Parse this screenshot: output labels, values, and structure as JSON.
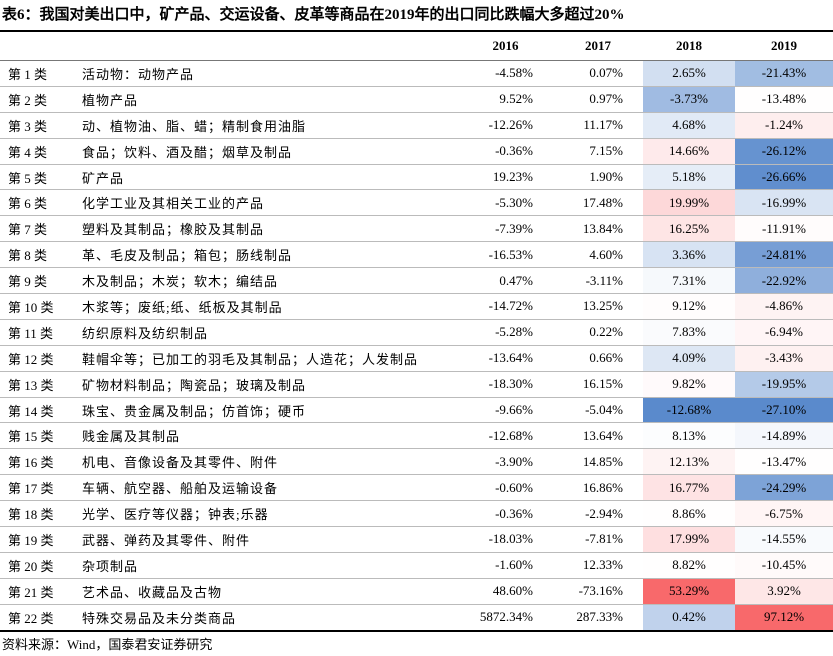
{
  "title": "表6：我国对美出口中，矿产品、交运设备、皮革等商品在2019年的出口同比跌幅大多超过20%",
  "table": {
    "header": [
      "2016",
      "2017",
      "2018",
      "2019"
    ],
    "rows": [
      [
        "第 1 类",
        "活动物：动物产品",
        "-4.58%",
        "0.07%",
        "2.65%",
        "-21.43%"
      ],
      [
        "第 2 类",
        "植物产品",
        "9.52%",
        "0.97%",
        "-3.73%",
        "-13.48%"
      ],
      [
        "第 3 类",
        "动、植物油、脂、蜡；精制食用油脂",
        "-12.26%",
        "11.17%",
        "4.68%",
        "-1.24%"
      ],
      [
        "第 4 类",
        "食品；饮料、酒及醋；烟草及制品",
        "-0.36%",
        "7.15%",
        "14.66%",
        "-26.12%"
      ],
      [
        "第 5 类",
        "矿产品",
        "19.23%",
        "1.90%",
        "5.18%",
        "-26.66%"
      ],
      [
        "第 6 类",
        "化学工业及其相关工业的产品",
        "-5.30%",
        "17.48%",
        "19.99%",
        "-16.99%"
      ],
      [
        "第 7 类",
        "塑料及其制品；橡胶及其制品",
        "-7.39%",
        "13.84%",
        "16.25%",
        "-11.91%"
      ],
      [
        "第 8 类",
        "革、毛皮及制品；箱包；肠线制品",
        "-16.53%",
        "4.60%",
        "3.36%",
        "-24.81%"
      ],
      [
        "第 9 类",
        "木及制品；木炭；软木；编结品",
        "0.47%",
        "-3.11%",
        "7.31%",
        "-22.92%"
      ],
      [
        "第 10 类",
        "木浆等；废纸;纸、纸板及其制品",
        "-14.72%",
        "13.25%",
        "9.12%",
        "-4.86%"
      ],
      [
        "第 11 类",
        "纺织原料及纺织制品",
        "-5.28%",
        "0.22%",
        "7.83%",
        "-6.94%"
      ],
      [
        "第 12 类",
        "鞋帽伞等；已加工的羽毛及其制品；人造花；人发制品",
        "-13.64%",
        "0.66%",
        "4.09%",
        "-3.43%"
      ],
      [
        "第 13 类",
        "矿物材料制品；陶瓷品；玻璃及制品",
        "-18.30%",
        "16.15%",
        "9.82%",
        "-19.95%"
      ],
      [
        "第 14 类",
        "珠宝、贵金属及制品；仿首饰；硬币",
        "-9.66%",
        "-5.04%",
        "-12.68%",
        "-27.10%"
      ],
      [
        "第 15 类",
        "贱金属及其制品",
        "-12.68%",
        "13.64%",
        "8.13%",
        "-14.89%"
      ],
      [
        "第 16 类",
        "机电、音像设备及其零件、附件",
        "-3.90%",
        "14.85%",
        "12.13%",
        "-13.47%"
      ],
      [
        "第 17 类",
        "车辆、航空器、船舶及运输设备",
        "-0.60%",
        "16.86%",
        "16.77%",
        "-24.29%"
      ],
      [
        "第 18 类",
        "光学、医疗等仪器；钟表;乐器",
        "-0.36%",
        "-2.94%",
        "8.86%",
        "-6.75%"
      ],
      [
        "第 19 类",
        "武器、弹药及其零件、附件",
        "-18.03%",
        "-7.81%",
        "17.99%",
        "-14.55%"
      ],
      [
        "第 20 类",
        "杂项制品",
        "-1.60%",
        "12.33%",
        "8.82%",
        "-10.45%"
      ],
      [
        "第 21 类",
        "艺术品、收藏品及古物",
        "48.60%",
        "-73.16%",
        "53.29%",
        "3.92%"
      ],
      [
        "第 22 类",
        "特殊交易品及未分类商品",
        "5872.34%",
        "287.33%",
        "0.42%",
        "97.12%"
      ]
    ]
  },
  "source": "资料来源：Wind，国泰君安证券研究"
}
